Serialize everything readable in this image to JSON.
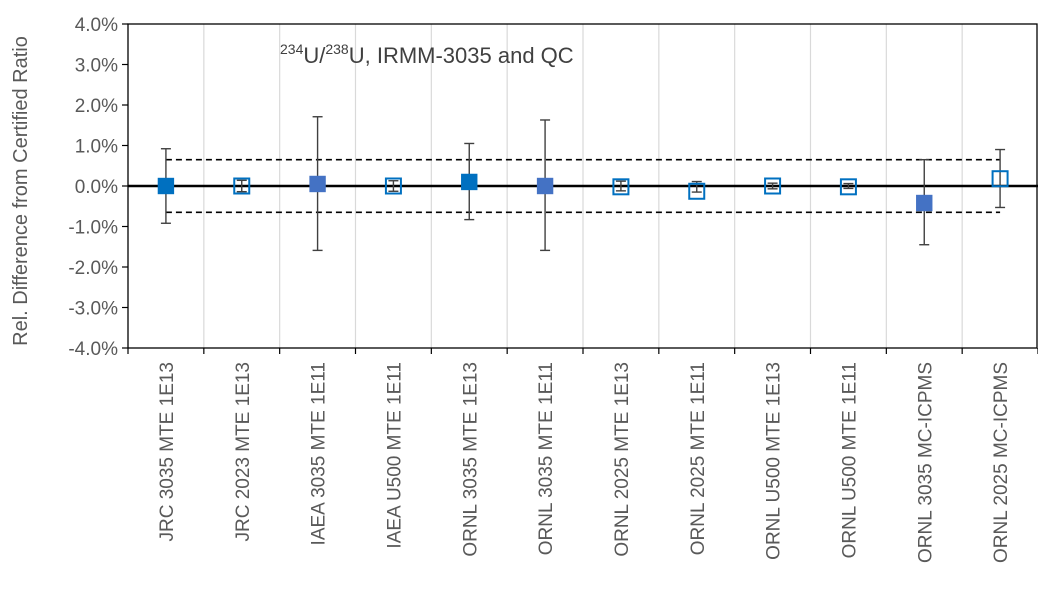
{
  "chart_data": {
    "type": "scatter",
    "title": "",
    "annotation": {
      "iso1_mass": "234",
      "iso1_el": "U/",
      "iso2_mass": "238",
      "iso2_el": "U, IRMM-3035 and QC"
    },
    "xlabel": "",
    "ylabel": "Rel. Difference from Certified Ratio",
    "ylim": [
      -0.04,
      0.04
    ],
    "ytick_values": [
      0.04,
      0.03,
      0.02,
      0.01,
      0.0,
      -0.01,
      -0.02,
      -0.03,
      -0.04
    ],
    "ytick_labels": [
      "4.0%",
      "3.0%",
      "2.0%",
      "1.0%",
      "0.0%",
      "-1.0%",
      "-2.0%",
      "-3.0%",
      "-4.0%"
    ],
    "grid": {
      "vertical": true,
      "horizontal": false
    },
    "reference_lines": {
      "zero": 0.0,
      "upper_dashed": 0.0065,
      "lower_dashed": -0.0065
    },
    "categories": [
      "JRC 3035 MTE 1E13",
      "JRC 2023 MTE 1E13",
      "IAEA 3035 MTE 1E11",
      "IAEA U500 MTE 1E11",
      "ORNL 3035 MTE 1E13",
      "ORNL 3035 MTE 1E11",
      "ORNL 2025 MTE 1E13",
      "ORNL 2025 MTE 1E11",
      "ORNL U500 MTE 1E13",
      "ORNL U500 MTE 1E11",
      "ORNL 3035 MC-ICPMS",
      "ORNL 2025 MC-ICPMS"
    ],
    "values": [
      0.0,
      0.0,
      0.0005,
      0.0,
      0.001,
      0.0,
      -0.0002,
      -0.0013,
      0.0,
      -0.0002,
      -0.0042,
      0.0018
    ],
    "err_upper": [
      0.0092,
      0.0014,
      0.0171,
      0.0013,
      0.0105,
      0.0163,
      0.0012,
      0.0011,
      0.0007,
      0.0006,
      0.0065,
      0.009
    ],
    "err_lower": [
      -0.0092,
      -0.0014,
      -0.0159,
      -0.0013,
      -0.0083,
      -0.0159,
      -0.0012,
      -0.0015,
      -0.0007,
      -0.0006,
      -0.0145,
      -0.0053
    ],
    "marker_filled": [
      true,
      false,
      true,
      false,
      true,
      true,
      false,
      false,
      false,
      false,
      true,
      false
    ],
    "marker_colors": [
      "#0070C0",
      "#0070C0",
      "#4472C4",
      "#0070C0",
      "#0070C0",
      "#4472C4",
      "#0070C0",
      "#0070C0",
      "#0070C0",
      "#0070C0",
      "#4472C4",
      "#0070C0"
    ],
    "colors": {
      "error_bar": "#404040",
      "zero_line": "#000000",
      "dashed_line": "#000000",
      "grid": "#D9D9D9",
      "axis": "#000000"
    }
  }
}
